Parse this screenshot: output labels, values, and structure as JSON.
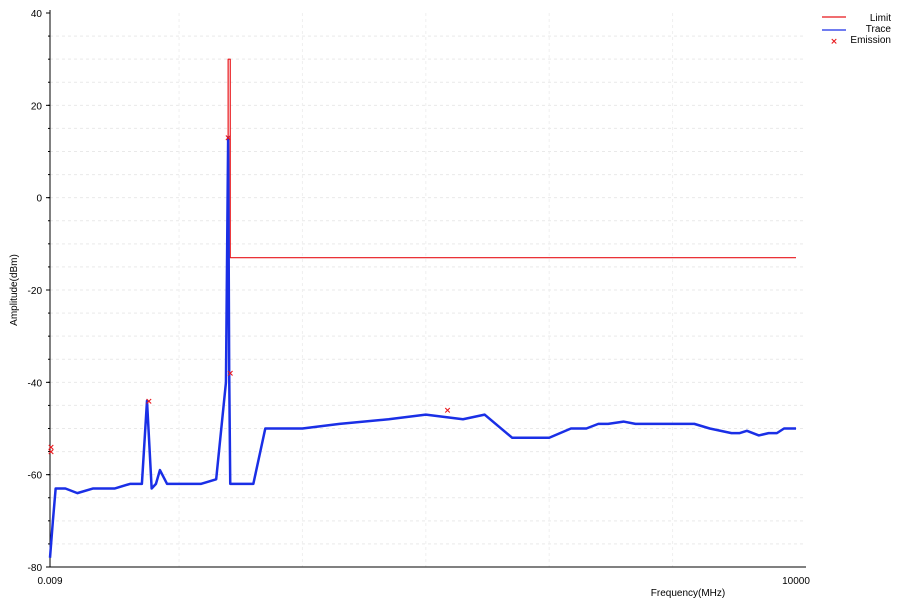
{
  "chart_data": {
    "type": "line",
    "title": "",
    "xlabel": "Frequency(MHz)",
    "ylabel": "Amplitude(dBm)",
    "x_scale": "log",
    "xlim": [
      0.009,
      10000
    ],
    "ylim": [
      -80,
      40
    ],
    "x_tick_labels": [
      "0.009",
      "10000"
    ],
    "y_ticks": [
      40,
      20,
      0,
      -20,
      -40,
      -60,
      -80
    ],
    "grid": true,
    "legend_position": "top-right",
    "colors": {
      "limit": "#e8161b",
      "trace": "#1a2fe6",
      "emission": "#e8161b"
    },
    "series": [
      {
        "name": "Limit",
        "type": "line",
        "color": "#e8161b",
        "x": [
          0.25,
          0.25,
          0.26,
          0.26,
          10000
        ],
        "y": [
          -13,
          30,
          30,
          -13,
          -13
        ]
      },
      {
        "name": "Trace",
        "type": "line",
        "color": "#1a2fe6",
        "x": [
          0.009,
          0.0095,
          0.01,
          0.012,
          0.015,
          0.02,
          0.03,
          0.04,
          0.05,
          0.055,
          0.06,
          0.065,
          0.07,
          0.08,
          0.1,
          0.15,
          0.2,
          0.24,
          0.25,
          0.255,
          0.26,
          0.27,
          0.3,
          0.4,
          0.5,
          0.6,
          0.8,
          1,
          2,
          5,
          10,
          20,
          30,
          50,
          60,
          80,
          100,
          150,
          200,
          250,
          300,
          400,
          500,
          700,
          1000,
          1200,
          1500,
          2000,
          3000,
          3500,
          4000,
          5000,
          6000,
          7000,
          8000,
          10000
        ],
        "y": [
          -78,
          -70,
          -63,
          -63,
          -64,
          -63,
          -63,
          -62,
          -62,
          -44,
          -63,
          -62,
          -59,
          -62,
          -62,
          -62,
          -61,
          -40,
          13,
          -38,
          -62,
          -62,
          -62,
          -62,
          -50,
          -50,
          -50,
          -50,
          -49,
          -48,
          -47,
          -48,
          -47,
          -52,
          -52,
          -52,
          -52,
          -50,
          -50,
          -49,
          -49,
          -48.5,
          -49,
          -49,
          -49,
          -49,
          -49,
          -50,
          -51,
          -51,
          -50.5,
          -51.5,
          -51,
          -51,
          -50,
          -50
        ]
      },
      {
        "name": "Emission",
        "type": "scatter",
        "color": "#e8161b",
        "x": [
          0.009,
          0.009,
          0.057,
          0.25,
          0.26,
          15
        ],
        "y": [
          -54,
          -55,
          -44,
          13,
          -38,
          -46
        ]
      }
    ]
  }
}
